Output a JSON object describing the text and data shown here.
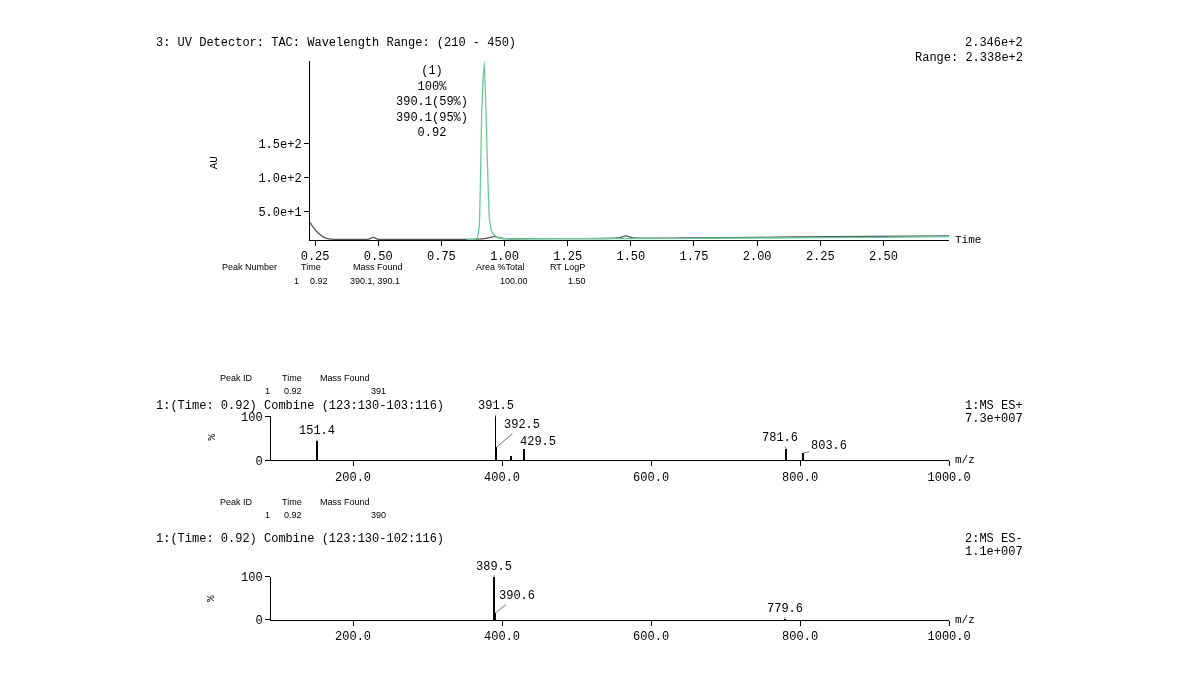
{
  "chart_data": [
    {
      "type": "line",
      "title": "3: UV Detector: TAC: Wavelength Range: (210 - 450)",
      "xlabel": "Time",
      "ylabel": "AU",
      "xlim": [
        0.23,
        2.76
      ],
      "xticks": [
        0.25,
        {
          "value": 0.5,
          "label": "0.50"
        },
        0.75,
        {
          "value": 1,
          "label": "1.00"
        },
        1.25,
        {
          "value": 1.5,
          "label": "1.50"
        },
        1.75,
        {
          "value": 2,
          "label": "2.00"
        },
        2.25,
        {
          "value": 2.5,
          "label": "2.50"
        }
      ],
      "ylim": [
        8,
        272
      ],
      "yticks": [
        {
          "value": 50,
          "label": "5.0e+1"
        },
        {
          "value": 100,
          "label": "1.0e+2"
        },
        {
          "value": 150,
          "label": "1.5e+2"
        }
      ],
      "series": [
        {
          "color": "#555555",
          "x": [
            0.23,
            0.24,
            0.26,
            0.28,
            0.3,
            0.33,
            0.4,
            0.46,
            0.48,
            0.5,
            0.55,
            0.7,
            0.85,
            0.92,
            0.96,
            1.0,
            1.1,
            1.3,
            1.45,
            1.48,
            1.51,
            1.7,
            2.0,
            2.3,
            2.76
          ],
          "values": [
            34,
            28,
            19,
            13,
            10,
            9,
            9,
            9,
            12,
            9,
            9,
            9,
            9,
            10,
            13,
            10,
            10,
            10,
            11,
            14,
            11,
            11,
            12,
            13,
            14
          ]
        },
        {
          "color": "#66cc99",
          "x": [
            0.85,
            0.89,
            0.9,
            0.91,
            0.92,
            0.93,
            0.94,
            0.95,
            0.97,
            1.0,
            1.2,
            1.5,
            2.0,
            2.5,
            2.76
          ],
          "values": [
            9,
            10,
            30,
            200,
            270,
            150,
            40,
            20,
            12,
            10,
            10,
            10,
            11,
            12,
            13
          ]
        }
      ],
      "annotations": [
        "2.346e+2",
        "Range: 2.338e+2",
        {
          "text": "(1)\n100%\n390.1(59%)\n390.1(95%)\n0.92",
          "x": 0.92,
          "y": 270
        },
        "Peak Number",
        "Time",
        "Mass Found",
        "Area %Total",
        "RT LogP",
        "1",
        "0.92",
        "390.1, 390.1",
        "100.00",
        "1.50"
      ]
    },
    {
      "type": "bar",
      "title": "1:(Time: 0.92) Combine (123:130-103:116)",
      "xlabel": "m/z",
      "ylabel": "%",
      "xlim": [
        90,
        1000
      ],
      "xticks": [
        {
          "value": 200,
          "label": "200.0"
        },
        {
          "value": 400,
          "label": "400.0"
        },
        {
          "value": 600,
          "label": "600.0"
        },
        {
          "value": 800,
          "label": "800.0"
        },
        {
          "value": 1000,
          "label": "1000.0"
        }
      ],
      "ylim": [
        0,
        100
      ],
      "yticks": [
        0,
        100
      ],
      "x": [
        151.4,
        391.5,
        392.5,
        412,
        429.5,
        781.6,
        803.6
      ],
      "series": [
        {
          "color": "#000000",
          "values": [
            43,
            100,
            30,
            10,
            26,
            26,
            16
          ]
        }
      ],
      "annotations": [
        "1:MS ES+",
        "7.3e+007",
        "Peak ID",
        "Time",
        "Mass Found",
        "1",
        "0.92",
        "391",
        {
          "text": "151.4",
          "x": 151.4,
          "y": 43
        },
        {
          "text": "391.5",
          "x": 391.5,
          "y": 100
        },
        {
          "text": "392.5",
          "x": 392.5,
          "y": 30
        },
        {
          "text": "429.5",
          "x": 429.5,
          "y": 26
        },
        {
          "text": "781.6",
          "x": 781.6,
          "y": 26
        },
        {
          "text": "803.6",
          "x": 803.6,
          "y": 16
        }
      ]
    },
    {
      "type": "bar",
      "title": "1:(Time: 0.92) Combine (123:130-102:116)",
      "xlabel": "m/z",
      "ylabel": "%",
      "xlim": [
        90,
        1000
      ],
      "xticks": [
        {
          "value": 200,
          "label": "200.0"
        },
        {
          "value": 400,
          "label": "400.0"
        },
        {
          "value": 600,
          "label": "600.0"
        },
        {
          "value": 800,
          "label": "800.0"
        },
        {
          "value": 1000,
          "label": "1000.0"
        }
      ],
      "ylim": [
        0,
        100
      ],
      "yticks": [
        0,
        100
      ],
      "x": [
        389.5,
        390.6,
        779.6
      ],
      "series": [
        {
          "color": "#000000",
          "values": [
            100,
            16,
            3
          ]
        }
      ],
      "annotations": [
        "2:MS ES-",
        "1.1e+007",
        "Peak ID",
        "Time",
        "Mass Found",
        "1",
        "0.92",
        "390",
        {
          "text": "389.5",
          "x": 389.5,
          "y": 100
        },
        {
          "text": "390.6",
          "x": 390.6,
          "y": 16
        },
        {
          "text": "779.6",
          "x": 779.6,
          "y": 3
        }
      ]
    }
  ]
}
